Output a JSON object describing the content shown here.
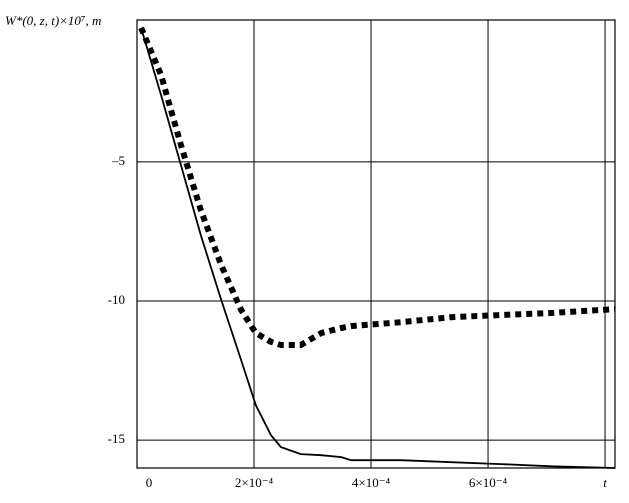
{
  "chart_data": {
    "type": "line",
    "y_label": "W*(0, z, t)×10⁷, m",
    "x": [
      7e-06,
      4.1e-05,
      7.5e-05,
      0.000109,
      0.000144,
      0.000178,
      0.000203,
      0.000229,
      0.000246,
      0.00028,
      0.000315,
      0.000349,
      0.000366,
      0.000451,
      0.000537,
      0.000622,
      0.000708,
      0.000817
    ],
    "series": [
      {
        "color": "#000000",
        "style": "solid",
        "values": [
          -0.18,
          -2.59,
          -5.11,
          -7.63,
          -9.96,
          -12.12,
          -13.74,
          -14.82,
          -15.25,
          -15.5,
          -15.54,
          -15.61,
          -15.72,
          -15.72,
          -15.79,
          -15.86,
          -15.94,
          -16.0
        ]
      },
      {
        "color": "#000000",
        "style": "dotted",
        "values": [
          -0.18,
          -1.87,
          -4.39,
          -6.73,
          -8.71,
          -10.32,
          -11.15,
          -11.47,
          -11.58,
          -11.58,
          -11.15,
          -10.97,
          -10.9,
          -10.76,
          -10.58,
          -10.5,
          -10.43,
          -10.29
        ]
      }
    ],
    "xlim": [
      0,
      0.000817
    ],
    "ylim": [
      -16,
      0.1
    ],
    "xticks": [
      0,
      {
        "value": 0.0002,
        "label": "2×10⁻⁴"
      },
      {
        "value": 0.0004,
        "label": "4×10⁻⁴"
      },
      {
        "value": 0.0006,
        "label": "6×10⁻⁴"
      },
      {
        "value": 0.0008,
        "label": "t"
      }
    ],
    "yticks": [
      {
        "value": -5,
        "label": "–5"
      },
      -10,
      -15
    ],
    "grid": true
  }
}
